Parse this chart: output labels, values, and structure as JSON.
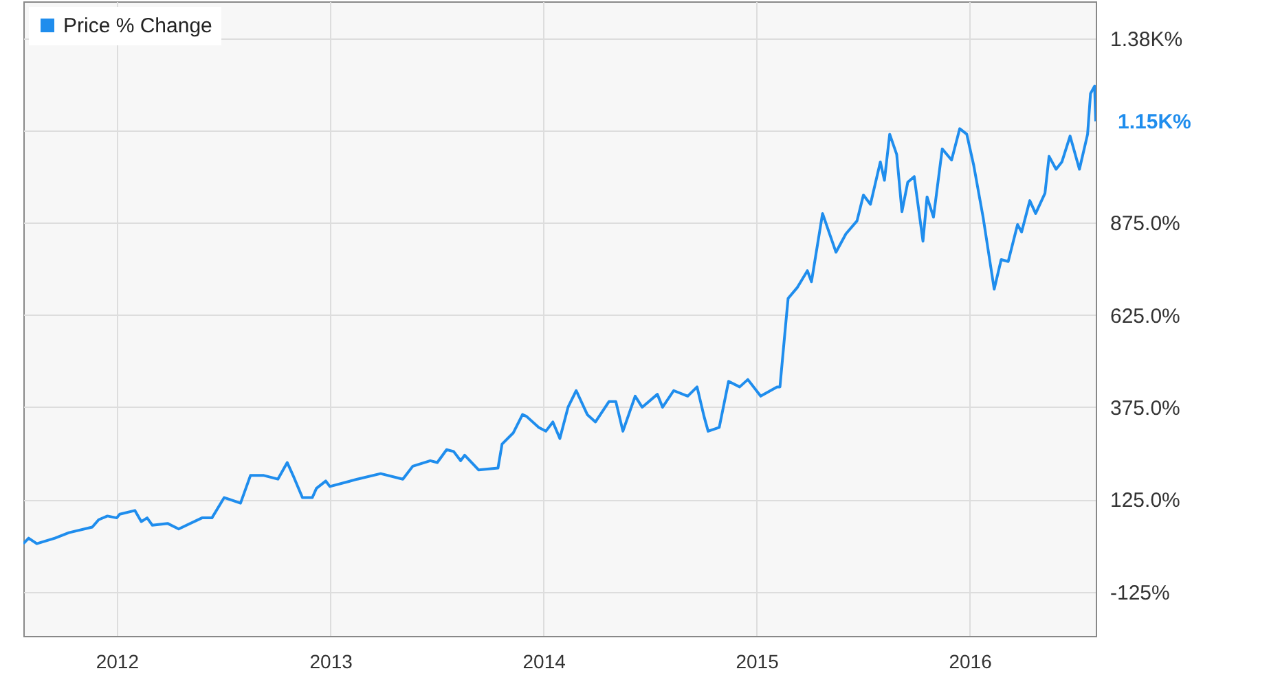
{
  "chart_data": {
    "type": "line",
    "x": [
      "2011-07-25",
      "2011-08-03",
      "2011-08-17",
      "2011-09-17",
      "2011-10-11",
      "2011-11-20",
      "2011-12-01",
      "2011-12-16",
      "2012-01-01",
      "2012-01-06",
      "2012-02-01",
      "2012-02-12",
      "2012-02-22",
      "2012-03-02",
      "2012-03-28",
      "2012-04-16",
      "2012-05-26",
      "2012-06-12",
      "2012-07-03",
      "2012-07-12",
      "2012-07-31",
      "2012-08-17",
      "2012-09-09",
      "2012-10-03",
      "2012-10-19",
      "2012-10-29",
      "2012-11-14",
      "2012-12-01",
      "2012-12-08",
      "2012-12-24",
      "2012-12-31",
      "2013-02-16",
      "2013-03-28",
      "2013-05-05",
      "2013-05-22",
      "2013-06-21",
      "2013-07-03",
      "2013-07-19",
      "2013-07-31",
      "2013-08-12",
      "2013-08-19",
      "2013-09-12",
      "2013-10-15",
      "2013-10-22",
      "2013-11-10",
      "2013-11-26",
      "2013-12-03",
      "2013-12-24",
      "2014-01-05",
      "2014-01-17",
      "2014-01-29",
      "2014-02-12",
      "2014-02-26",
      "2014-03-17",
      "2014-03-31",
      "2014-04-23",
      "2014-05-05",
      "2014-05-17",
      "2014-06-07",
      "2014-06-19",
      "2014-07-15",
      "2014-07-24",
      "2014-08-12",
      "2014-09-05",
      "2014-09-21",
      "2014-10-03",
      "2014-10-10",
      "2014-10-29",
      "2014-11-14",
      "2014-12-03",
      "2014-12-17",
      "2015-01-08",
      "2015-02-05",
      "2015-02-10",
      "2015-02-21",
      "2015-02-24",
      "2015-03-12",
      "2015-03-29",
      "2015-04-05",
      "2015-04-24",
      "2015-05-17",
      "2015-06-03",
      "2015-06-22",
      "2015-07-03",
      "2015-07-15",
      "2015-08-01",
      "2015-08-08",
      "2015-08-17",
      "2015-08-29",
      "2015-09-07",
      "2015-09-17",
      "2015-09-28",
      "2015-10-13",
      "2015-10-20",
      "2015-10-31",
      "2015-11-15",
      "2015-12-01",
      "2015-12-15",
      "2015-12-27",
      "2016-01-08",
      "2016-01-24",
      "2016-02-12",
      "2016-02-24",
      "2016-03-07",
      "2016-03-23",
      "2016-03-30",
      "2016-04-13",
      "2016-04-23",
      "2016-05-09",
      "2016-05-16",
      "2016-05-28",
      "2016-06-07",
      "2016-06-21",
      "2016-07-07",
      "2016-07-21",
      "2016-07-26",
      "2016-08-02",
      "2016-08-04"
    ],
    "series": [
      {
        "name": "Price % Change",
        "color": "#1f8ded",
        "values": [
          5,
          20,
          5,
          20,
          35,
          50,
          70,
          80,
          75,
          85,
          95,
          65,
          75,
          55,
          60,
          45,
          75,
          75,
          130,
          125,
          115,
          190,
          190,
          180,
          225,
          190,
          130,
          130,
          155,
          175,
          160,
          180,
          195,
          180,
          215,
          230,
          225,
          260,
          255,
          230,
          245,
          205,
          210,
          275,
          305,
          355,
          350,
          320,
          310,
          335,
          290,
          375,
          420,
          355,
          335,
          390,
          390,
          310,
          405,
          375,
          410,
          375,
          420,
          405,
          430,
          350,
          310,
          320,
          445,
          430,
          450,
          405,
          430,
          430,
          620,
          670,
          700,
          745,
          715,
          900,
          795,
          845,
          880,
          950,
          925,
          1040,
          990,
          1115,
          1060,
          905,
          985,
          1000,
          825,
          945,
          890,
          1075,
          1045,
          1130,
          1115,
          1030,
          890,
          695,
          775,
          770,
          870,
          850,
          935,
          900,
          955,
          1055,
          1020,
          1040,
          1110,
          1020,
          1115,
          1225,
          1245,
          1150
        ]
      }
    ],
    "xlim": [
      "2011-07-25",
      "2016-08-04"
    ],
    "xticks": [
      {
        "value": "2012-01-01",
        "label": "2012"
      },
      {
        "value": "2013-01-01",
        "label": "2013"
      },
      {
        "value": "2014-01-01",
        "label": "2014"
      },
      {
        "value": "2015-01-01",
        "label": "2015"
      },
      {
        "value": "2016-01-01",
        "label": "2016"
      }
    ],
    "ylim": [
      -245,
      1475
    ],
    "yticks": [
      {
        "value": -125,
        "label": "-125%"
      },
      {
        "value": 125,
        "label": "125.0%"
      },
      {
        "value": 375,
        "label": "375.0%"
      },
      {
        "value": 625,
        "label": "625.0%"
      },
      {
        "value": 875,
        "label": "875.0%"
      },
      {
        "value": 1125,
        "label": null
      },
      {
        "value": 1375,
        "label": "1.38K%"
      }
    ],
    "annotations": [
      {
        "text": "1.15K%",
        "x": "2016-08-04",
        "y": 1150
      }
    ],
    "grid": true,
    "legend": "top left",
    "line_style": "solid"
  }
}
